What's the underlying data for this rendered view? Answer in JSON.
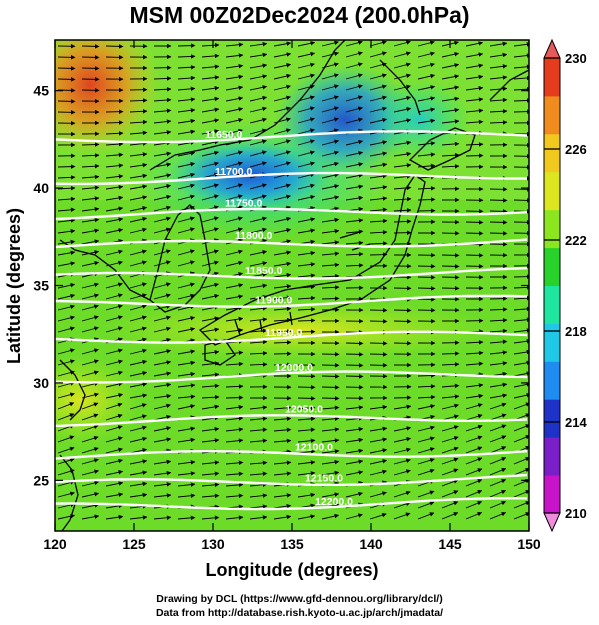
{
  "title": "MSM 00Z02Dec2024 (200.0hPa)",
  "credits": {
    "line1": "Drawing by DCL (https://www.gfd-dennou.org/library/dcl/)",
    "line2": "Data from http://database.rish.kyoto-u.ac.jp/arch/jmadata/"
  },
  "map": {
    "xlabel": "Longitude (degrees)",
    "ylabel": "Latitude  (degrees)",
    "xlim": [
      120,
      150
    ],
    "ylim": [
      22.4,
      47.6
    ],
    "x_ticks": [
      "120",
      "125",
      "130",
      "135",
      "140",
      "145",
      "150"
    ],
    "y_ticks": [
      "25",
      "30",
      "35",
      "40",
      "45"
    ],
    "contours": [
      {
        "label": "11650.0",
        "lat": 42.5
      },
      {
        "label": "11700.0",
        "lat": 40.4
      },
      {
        "label": "11750.0",
        "lat": 38.6
      },
      {
        "label": "11800.0",
        "lat": 37.0
      },
      {
        "label": "11850.0",
        "lat": 35.4
      },
      {
        "label": "11900.0",
        "lat": 34.0
      },
      {
        "label": "11950.0",
        "lat": 32.2
      },
      {
        "label": "12000.0",
        "lat": 30.2
      },
      {
        "label": "12050.0",
        "lat": 28.0
      },
      {
        "label": "12100.0",
        "lat": 26.2
      },
      {
        "label": "12150.0",
        "lat": 24.8
      },
      {
        "label": "12200.0",
        "lat": 23.6
      }
    ]
  },
  "colorbar": {
    "min": 210,
    "max": 230,
    "tick_labels": [
      "230",
      "226",
      "222",
      "218",
      "214",
      "210"
    ],
    "colors": [
      "#c814c8",
      "#7a1ec8",
      "#1e32c8",
      "#1e8cf0",
      "#1ec8e6",
      "#1ee6a0",
      "#28d22a",
      "#8ce61e",
      "#dce61e",
      "#f0c81e",
      "#f08c1e",
      "#e63c1e"
    ]
  }
}
